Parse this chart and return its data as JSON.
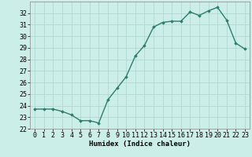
{
  "x": [
    0,
    1,
    2,
    3,
    4,
    5,
    6,
    7,
    8,
    9,
    10,
    11,
    12,
    13,
    14,
    15,
    16,
    17,
    18,
    19,
    20,
    21,
    22,
    23
  ],
  "y": [
    23.7,
    23.7,
    23.7,
    23.5,
    23.2,
    22.7,
    22.7,
    22.5,
    24.5,
    25.5,
    26.5,
    28.3,
    29.2,
    30.8,
    31.2,
    31.3,
    31.3,
    32.1,
    31.8,
    32.2,
    32.5,
    31.4,
    29.4,
    28.9
  ],
  "line_color": "#2e7d6e",
  "marker": "D",
  "marker_size": 1.8,
  "bg_color": "#cceee8",
  "grid_color": "#b0d8d2",
  "xlabel": "Humidex (Indice chaleur)",
  "ylim": [
    22,
    33
  ],
  "xlim": [
    -0.5,
    23.5
  ],
  "yticks": [
    22,
    23,
    24,
    25,
    26,
    27,
    28,
    29,
    30,
    31,
    32
  ],
  "xticks": [
    0,
    1,
    2,
    3,
    4,
    5,
    6,
    7,
    8,
    9,
    10,
    11,
    12,
    13,
    14,
    15,
    16,
    17,
    18,
    19,
    20,
    21,
    22,
    23
  ],
  "xlabel_fontsize": 6.5,
  "tick_fontsize": 6,
  "line_width": 1.0
}
